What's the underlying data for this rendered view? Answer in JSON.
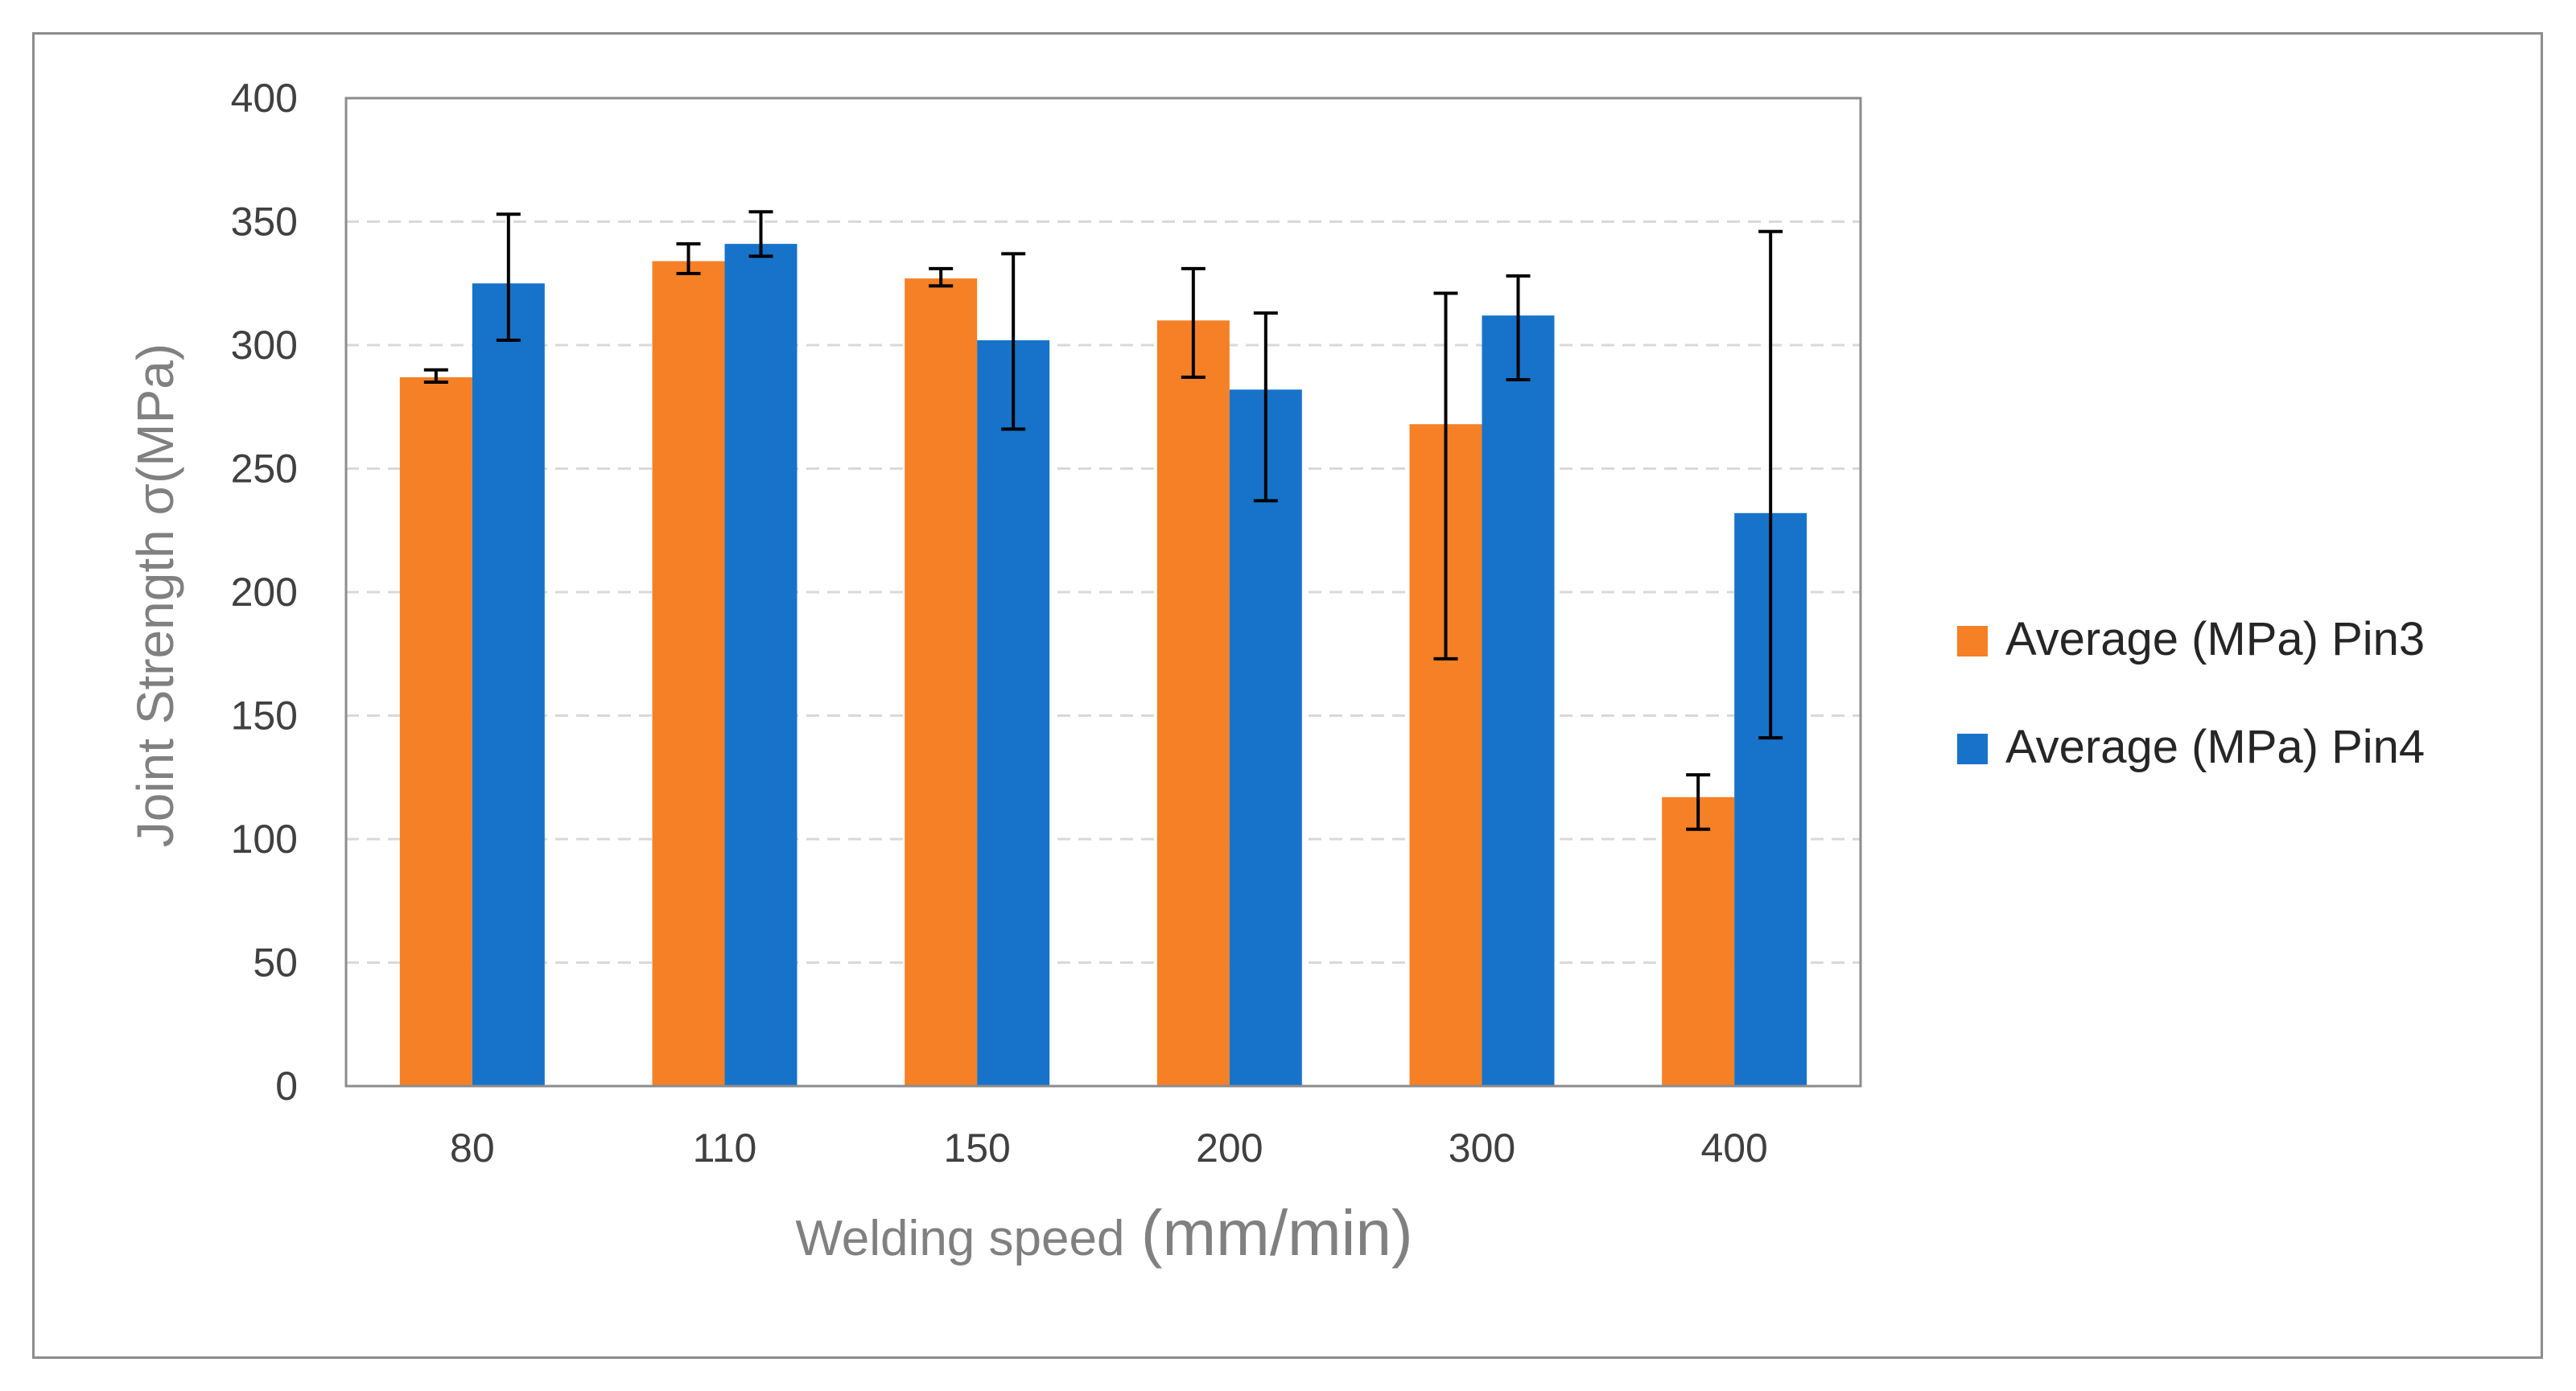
{
  "chart_data": {
    "type": "bar",
    "title": "",
    "categories": [
      "80",
      "110",
      "150",
      "200",
      "300",
      "400"
    ],
    "xlabel": "Welding speed",
    "xlabel_unit": "(mm/min)",
    "ylabel": "Joint Strength σ(MPa)",
    "ylim": [
      0,
      400
    ],
    "yticks": [
      "0",
      "50",
      "100",
      "150",
      "200",
      "250",
      "300",
      "350",
      "400"
    ],
    "grid": "horizontal dashed",
    "legend_position": "right",
    "series": [
      {
        "name": "Average (MPa) Pin3",
        "color": "#F58025",
        "values": [
          287,
          334,
          327,
          310,
          268,
          117
        ],
        "error_low": [
          285,
          329,
          324,
          287,
          173,
          104
        ],
        "error_high": [
          290,
          341,
          331,
          331,
          321,
          126
        ]
      },
      {
        "name": "Average (MPa) Pin4",
        "color": "#1773CA",
        "values": [
          325,
          341,
          302,
          282,
          312,
          232
        ],
        "error_low": [
          302,
          336,
          266,
          237,
          286,
          141
        ],
        "error_high": [
          353,
          354,
          337,
          313,
          328,
          346
        ]
      }
    ]
  }
}
